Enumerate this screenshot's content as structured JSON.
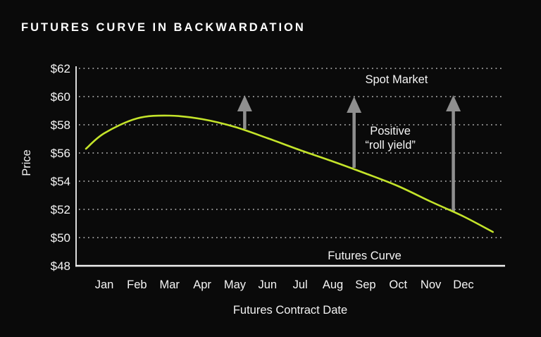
{
  "title": "FUTURES CURVE IN BACKWARDATION",
  "colors": {
    "background": "#0a0a0a",
    "text": "#f2f2f2",
    "curve": "#c4e42a",
    "arrow": "#8f8f8f",
    "grid_dots": "#a8a8a8",
    "axis_line": "#dcdcdc",
    "baseline": "#f0f0f0"
  },
  "chart_data": {
    "type": "line",
    "title": "FUTURES CURVE IN BACKWARDATION",
    "xlabel": "Futures Contract Date",
    "ylabel": "Price",
    "x_categories": [
      "Jan",
      "Feb",
      "Mar",
      "Apr",
      "May",
      "Jun",
      "Jul",
      "Aug",
      "Sep",
      "Oct",
      "Nov",
      "Dec"
    ],
    "y_ticks": [
      62,
      60,
      58,
      56,
      54,
      52,
      50,
      48
    ],
    "y_tick_prefix": "$",
    "ylim": [
      48,
      62
    ],
    "grid": "horizontal-dotted",
    "legend": "none",
    "series": [
      {
        "name": "Futures Curve",
        "color": "#c4e42a",
        "values": [
          57.4,
          58.45,
          58.65,
          58.4,
          57.85,
          57.05,
          56.2,
          55.4,
          54.55,
          53.65,
          52.55,
          51.5
        ],
        "extension": {
          "start": {
            "x": -0.56,
            "price": 56.3
          },
          "end": {
            "x": 11.9,
            "price": 50.4
          }
        }
      }
    ],
    "arrows": [
      {
        "name": "roll-yield-arrow-may",
        "x": 4.3,
        "from_price": 57.7,
        "to_price": 60.1
      },
      {
        "name": "roll-yield-arrow-sep",
        "x": 7.65,
        "from_price": 54.95,
        "to_price": 60.0
      },
      {
        "name": "roll-yield-arrow-dec",
        "x": 10.69,
        "from_price": 51.8,
        "to_price": 60.1
      }
    ],
    "annotations": [
      {
        "name": "spot-market-label",
        "text": "Spot Market",
        "x": 8.95,
        "price": 61.2
      },
      {
        "name": "roll-yield-label",
        "text": "Positive\n“roll yield”",
        "x": 8.76,
        "price": 57.05
      },
      {
        "name": "futures-curve-label",
        "text": "Futures Curve",
        "x": 7.97,
        "price": 48.7
      }
    ]
  }
}
